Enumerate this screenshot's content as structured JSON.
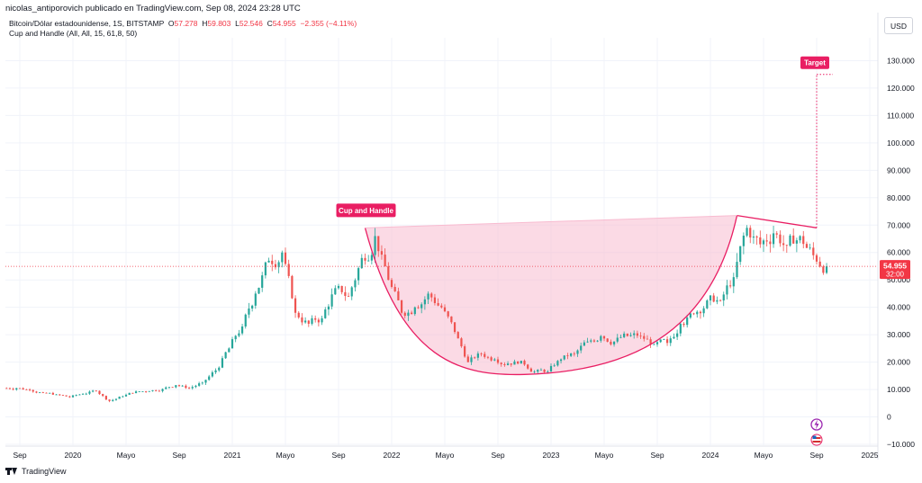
{
  "header": {
    "published": "nicolas_antiporovich publicado en TradingView.com, Sep 08, 2024 23:28 UTC",
    "symbol": "Bitcoin/Dólar estadounidense, 1S, BITSTAMP",
    "ohlc": [
      {
        "label": "O",
        "value": "57.278"
      },
      {
        "label": "H",
        "value": "59.803"
      },
      {
        "label": "L",
        "value": "52.546"
      },
      {
        "label": "C",
        "value": "54.955"
      }
    ],
    "change": "−2.355 (−4.11%)",
    "indicator": "Cup and Handle (All, All, 15, 61,8, 50)",
    "currency": "USD"
  },
  "footer": {
    "brand": "TradingView"
  },
  "colors": {
    "up": "#26a69a",
    "down": "#ef5350",
    "pattern": "#e91e63",
    "fill": "#f8bbd0",
    "label_bg": "#e91e63",
    "price_tag": "#f23645"
  },
  "icons": [
    "tradingview-logo-icon",
    "lightning-icon",
    "us-flag-icon"
  ],
  "chart_data": {
    "type": "candlestick",
    "ylim": [
      -10000,
      140000
    ],
    "y_ticks": [
      {
        "value": 130000,
        "label": "130.000"
      },
      {
        "value": 120000,
        "label": "120.000"
      },
      {
        "value": 110000,
        "label": "110.000"
      },
      {
        "value": 100000,
        "label": "100.000"
      },
      {
        "value": 90000,
        "label": "90.000"
      },
      {
        "value": 80000,
        "label": "80.000"
      },
      {
        "value": 70000,
        "label": "70.000"
      },
      {
        "value": 60000,
        "label": "60.000"
      },
      {
        "value": 50000,
        "label": "50.000"
      },
      {
        "value": 40000,
        "label": "40.000"
      },
      {
        "value": 30000,
        "label": "30.000"
      },
      {
        "value": 20000,
        "label": "20.000"
      },
      {
        "value": 10000,
        "label": "10.000"
      },
      {
        "value": 0,
        "label": "0"
      },
      {
        "value": -10000,
        "label": "−10.000"
      }
    ],
    "x_ticks": [
      {
        "date": "2019-09",
        "label": "Sep"
      },
      {
        "date": "2020-01",
        "label": "2020"
      },
      {
        "date": "2020-05",
        "label": "Mayo"
      },
      {
        "date": "2020-09",
        "label": "Sep"
      },
      {
        "date": "2021-01",
        "label": "2021"
      },
      {
        "date": "2021-05",
        "label": "Mayo"
      },
      {
        "date": "2021-09",
        "label": "Sep"
      },
      {
        "date": "2022-01",
        "label": "2022"
      },
      {
        "date": "2022-05",
        "label": "Mayo"
      },
      {
        "date": "2022-09",
        "label": "Sep"
      },
      {
        "date": "2023-01",
        "label": "2023"
      },
      {
        "date": "2023-05",
        "label": "Mayo"
      },
      {
        "date": "2023-09",
        "label": "Sep"
      },
      {
        "date": "2024-01",
        "label": "2024"
      },
      {
        "date": "2024-05",
        "label": "Mayo"
      },
      {
        "date": "2024-09",
        "label": "Sep"
      },
      {
        "date": "2025-01",
        "label": "2025"
      }
    ],
    "close_series": [
      [
        "2019-08",
        10500
      ],
      [
        "2019-09",
        9800
      ],
      [
        "2019-10",
        8800
      ],
      [
        "2019-11",
        8200
      ],
      [
        "2019-12",
        7200
      ],
      [
        "2020-01",
        8400
      ],
      [
        "2020-02",
        9500
      ],
      [
        "2020-03",
        5800
      ],
      [
        "2020-04",
        7500
      ],
      [
        "2020-05",
        9300
      ],
      [
        "2020-06",
        9400
      ],
      [
        "2020-07",
        10200
      ],
      [
        "2020-08",
        11600
      ],
      [
        "2020-09",
        10500
      ],
      [
        "2020-10",
        12500
      ],
      [
        "2020-11",
        17000
      ],
      [
        "2020-12",
        25000
      ],
      [
        "2021-01",
        33000
      ],
      [
        "2021-02",
        45000
      ],
      [
        "2021-03",
        57000
      ],
      [
        "2021-04",
        60000
      ],
      [
        "2021-05",
        38000
      ],
      [
        "2021-06",
        34000
      ],
      [
        "2021-07",
        36000
      ],
      [
        "2021-08",
        47000
      ],
      [
        "2021-09",
        44000
      ],
      [
        "2021-10",
        58000
      ],
      [
        "2021-11",
        66000
      ],
      [
        "2021-12",
        50000
      ],
      [
        "2022-01",
        38000
      ],
      [
        "2022-02",
        40000
      ],
      [
        "2022-03",
        45000
      ],
      [
        "2022-04",
        40000
      ],
      [
        "2022-05",
        31000
      ],
      [
        "2022-06",
        20000
      ],
      [
        "2022-07",
        23000
      ],
      [
        "2022-08",
        21000
      ],
      [
        "2022-09",
        19500
      ],
      [
        "2022-10",
        20500
      ],
      [
        "2022-11",
        16500
      ],
      [
        "2022-12",
        16600
      ],
      [
        "2023-01",
        21000
      ],
      [
        "2023-02",
        23000
      ],
      [
        "2023-03",
        27500
      ],
      [
        "2023-04",
        29500
      ],
      [
        "2023-05",
        27500
      ],
      [
        "2023-06",
        29500
      ],
      [
        "2023-07",
        29500
      ],
      [
        "2023-08",
        26500
      ],
      [
        "2023-09",
        27000
      ],
      [
        "2023-10",
        34000
      ],
      [
        "2023-11",
        37500
      ],
      [
        "2023-12",
        42500
      ],
      [
        "2024-01",
        42500
      ],
      [
        "2024-02",
        51000
      ],
      [
        "2024-03",
        69000
      ],
      [
        "2024-04",
        63000
      ],
      [
        "2024-05",
        67000
      ],
      [
        "2024-06",
        62500
      ],
      [
        "2024-07",
        66000
      ],
      [
        "2024-08",
        59000
      ],
      [
        "2024-09",
        54955
      ]
    ],
    "last_price": {
      "value": 54955,
      "label": "54.955",
      "countdown": "32:00"
    },
    "pattern": {
      "name": "Cup and Handle",
      "target_label": "Target",
      "rim_left": {
        "date": "2021-11",
        "value": 69000
      },
      "rim_right": {
        "date": "2024-03",
        "value": 73500
      },
      "cup_bottom": {
        "date": "2022-11",
        "value": 15500
      },
      "handle_end": {
        "date": "2024-09",
        "value": 69000
      },
      "target": {
        "date": "2024-09",
        "value": 125000
      }
    }
  }
}
